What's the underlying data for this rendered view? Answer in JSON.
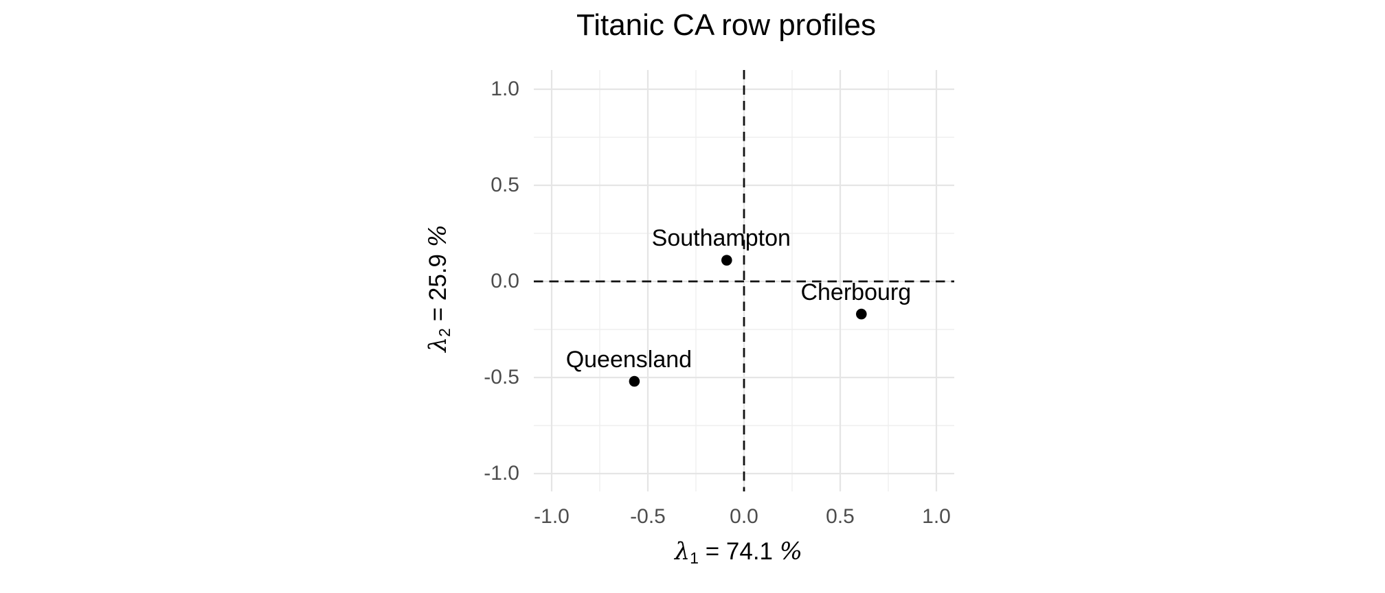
{
  "page": {
    "background": "#ffffff"
  },
  "chart_data": {
    "type": "scatter",
    "title": "Titanic CA row profiles",
    "x_axis": {
      "title_symbol": "λ",
      "title_sub": "1",
      "title_rest": " = 74.1 ",
      "title_pct": "%",
      "variance_pct": 74.1,
      "tick_labels": [
        "-1.0",
        "-0.5",
        "0.0",
        "0.5",
        "1.0"
      ],
      "tick_values": [
        -1.0,
        -0.5,
        0.0,
        0.5,
        1.0
      ],
      "minor_tick_values": [
        -0.75,
        -0.25,
        0.25,
        0.75
      ],
      "range": [
        -1.09,
        1.09
      ]
    },
    "y_axis": {
      "title_symbol": "λ",
      "title_sub": "2",
      "title_rest": " = 25.9 ",
      "title_pct": "%",
      "variance_pct": 25.9,
      "tick_labels": [
        "1.0",
        "0.5",
        "0.0",
        "-0.5",
        "-1.0"
      ],
      "tick_values": [
        1.0,
        0.5,
        0.0,
        -0.5,
        -1.0
      ],
      "minor_tick_values": [
        0.75,
        0.25,
        -0.25,
        -0.75
      ],
      "range": [
        -1.09,
        1.09
      ]
    },
    "points": [
      {
        "label": "Southampton",
        "x": -0.09,
        "y": 0.11
      },
      {
        "label": "Cherbourg",
        "x": 0.61,
        "y": -0.17
      },
      {
        "label": "Queensland",
        "x": -0.57,
        "y": -0.52
      }
    ],
    "reference_lines": [
      {
        "axis": "vertical",
        "value": 0,
        "style": "dashed"
      },
      {
        "axis": "horizontal",
        "value": 0,
        "style": "dashed"
      }
    ],
    "grid": {
      "major": true,
      "minor": true,
      "legend": "none"
    },
    "colors": {
      "point": "#000000",
      "grid_major": "#e5e5e5",
      "grid_minor": "#efefef",
      "reference_line": "#111111",
      "tick_text": "#4d4d4d",
      "title_text": "#000000"
    }
  }
}
